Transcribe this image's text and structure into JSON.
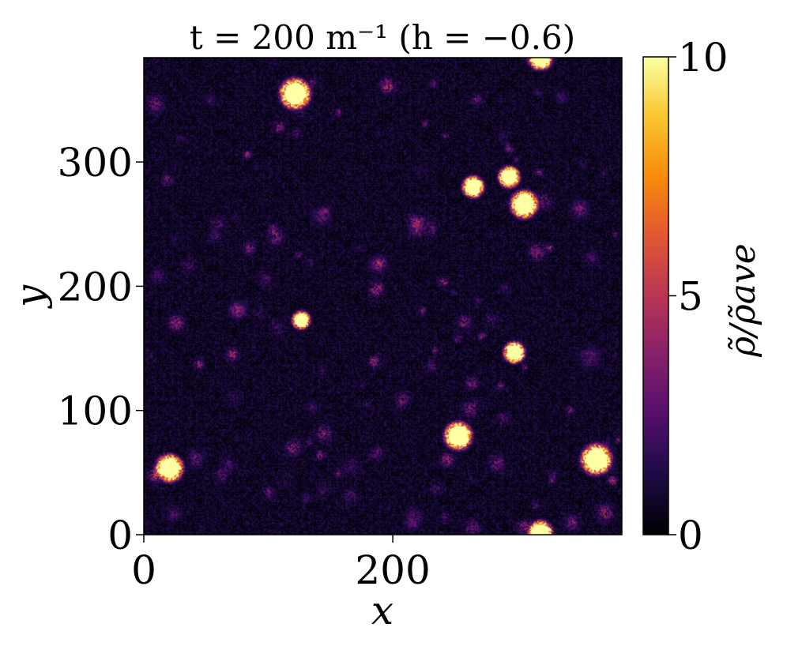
{
  "chart_data": {
    "type": "heatmap",
    "title": "t = 200 m⁻¹ (h = −0.6)",
    "xlabel": "x",
    "ylabel": "y",
    "xlim": [
      0,
      384
    ],
    "ylim": [
      0,
      384
    ],
    "x_ticks": [
      0,
      200
    ],
    "y_ticks": [
      0,
      100,
      200,
      300
    ],
    "colorbar": {
      "label": "ρ̃/ρ̃ave",
      "range": [
        0,
        10
      ],
      "ticks": [
        0,
        5,
        10
      ],
      "colormap": "inferno"
    },
    "background_level": 0.6,
    "blobs": [
      {
        "x": 121,
        "y": 355,
        "r": 10,
        "peak": 10
      },
      {
        "x": 318,
        "y": 384,
        "r": 8,
        "peak": 10
      },
      {
        "x": 264,
        "y": 280,
        "r": 7,
        "peak": 10
      },
      {
        "x": 293,
        "y": 288,
        "r": 7,
        "peak": 10
      },
      {
        "x": 305,
        "y": 266,
        "r": 9,
        "peak": 10
      },
      {
        "x": 297,
        "y": 147,
        "r": 7,
        "peak": 10
      },
      {
        "x": 126,
        "y": 173,
        "r": 6,
        "peak": 9
      },
      {
        "x": 252,
        "y": 80,
        "r": 9,
        "peak": 10
      },
      {
        "x": 363,
        "y": 61,
        "r": 10,
        "peak": 10
      },
      {
        "x": 20,
        "y": 54,
        "r": 9,
        "peak": 10
      },
      {
        "x": 318,
        "y": 2,
        "r": 8,
        "peak": 10
      },
      {
        "x": 376,
        "y": 44,
        "r": 4,
        "peak": 6
      },
      {
        "x": 75,
        "y": 181,
        "r": 8,
        "peak": 4
      },
      {
        "x": 188,
        "y": 218,
        "r": 8,
        "peak": 4
      },
      {
        "x": 143,
        "y": 257,
        "r": 9,
        "peak": 3
      },
      {
        "x": 350,
        "y": 262,
        "r": 9,
        "peak": 3
      },
      {
        "x": 358,
        "y": 143,
        "r": 11,
        "peak": 2.5
      },
      {
        "x": 83,
        "y": 306,
        "r": 4,
        "peak": 4
      },
      {
        "x": 135,
        "y": 103,
        "r": 7,
        "peak": 2
      },
      {
        "x": 215,
        "y": 10,
        "r": 7,
        "peak": 3
      },
      {
        "x": 130,
        "y": 30,
        "r": 6,
        "peak": 2
      },
      {
        "x": 335,
        "y": 352,
        "r": 7,
        "peak": 2
      },
      {
        "x": 232,
        "y": 363,
        "r": 4,
        "peak": 3
      },
      {
        "x": 53,
        "y": 350,
        "r": 6,
        "peak": 2
      },
      {
        "x": 290,
        "y": 198,
        "r": 6,
        "peak": 2
      }
    ]
  }
}
